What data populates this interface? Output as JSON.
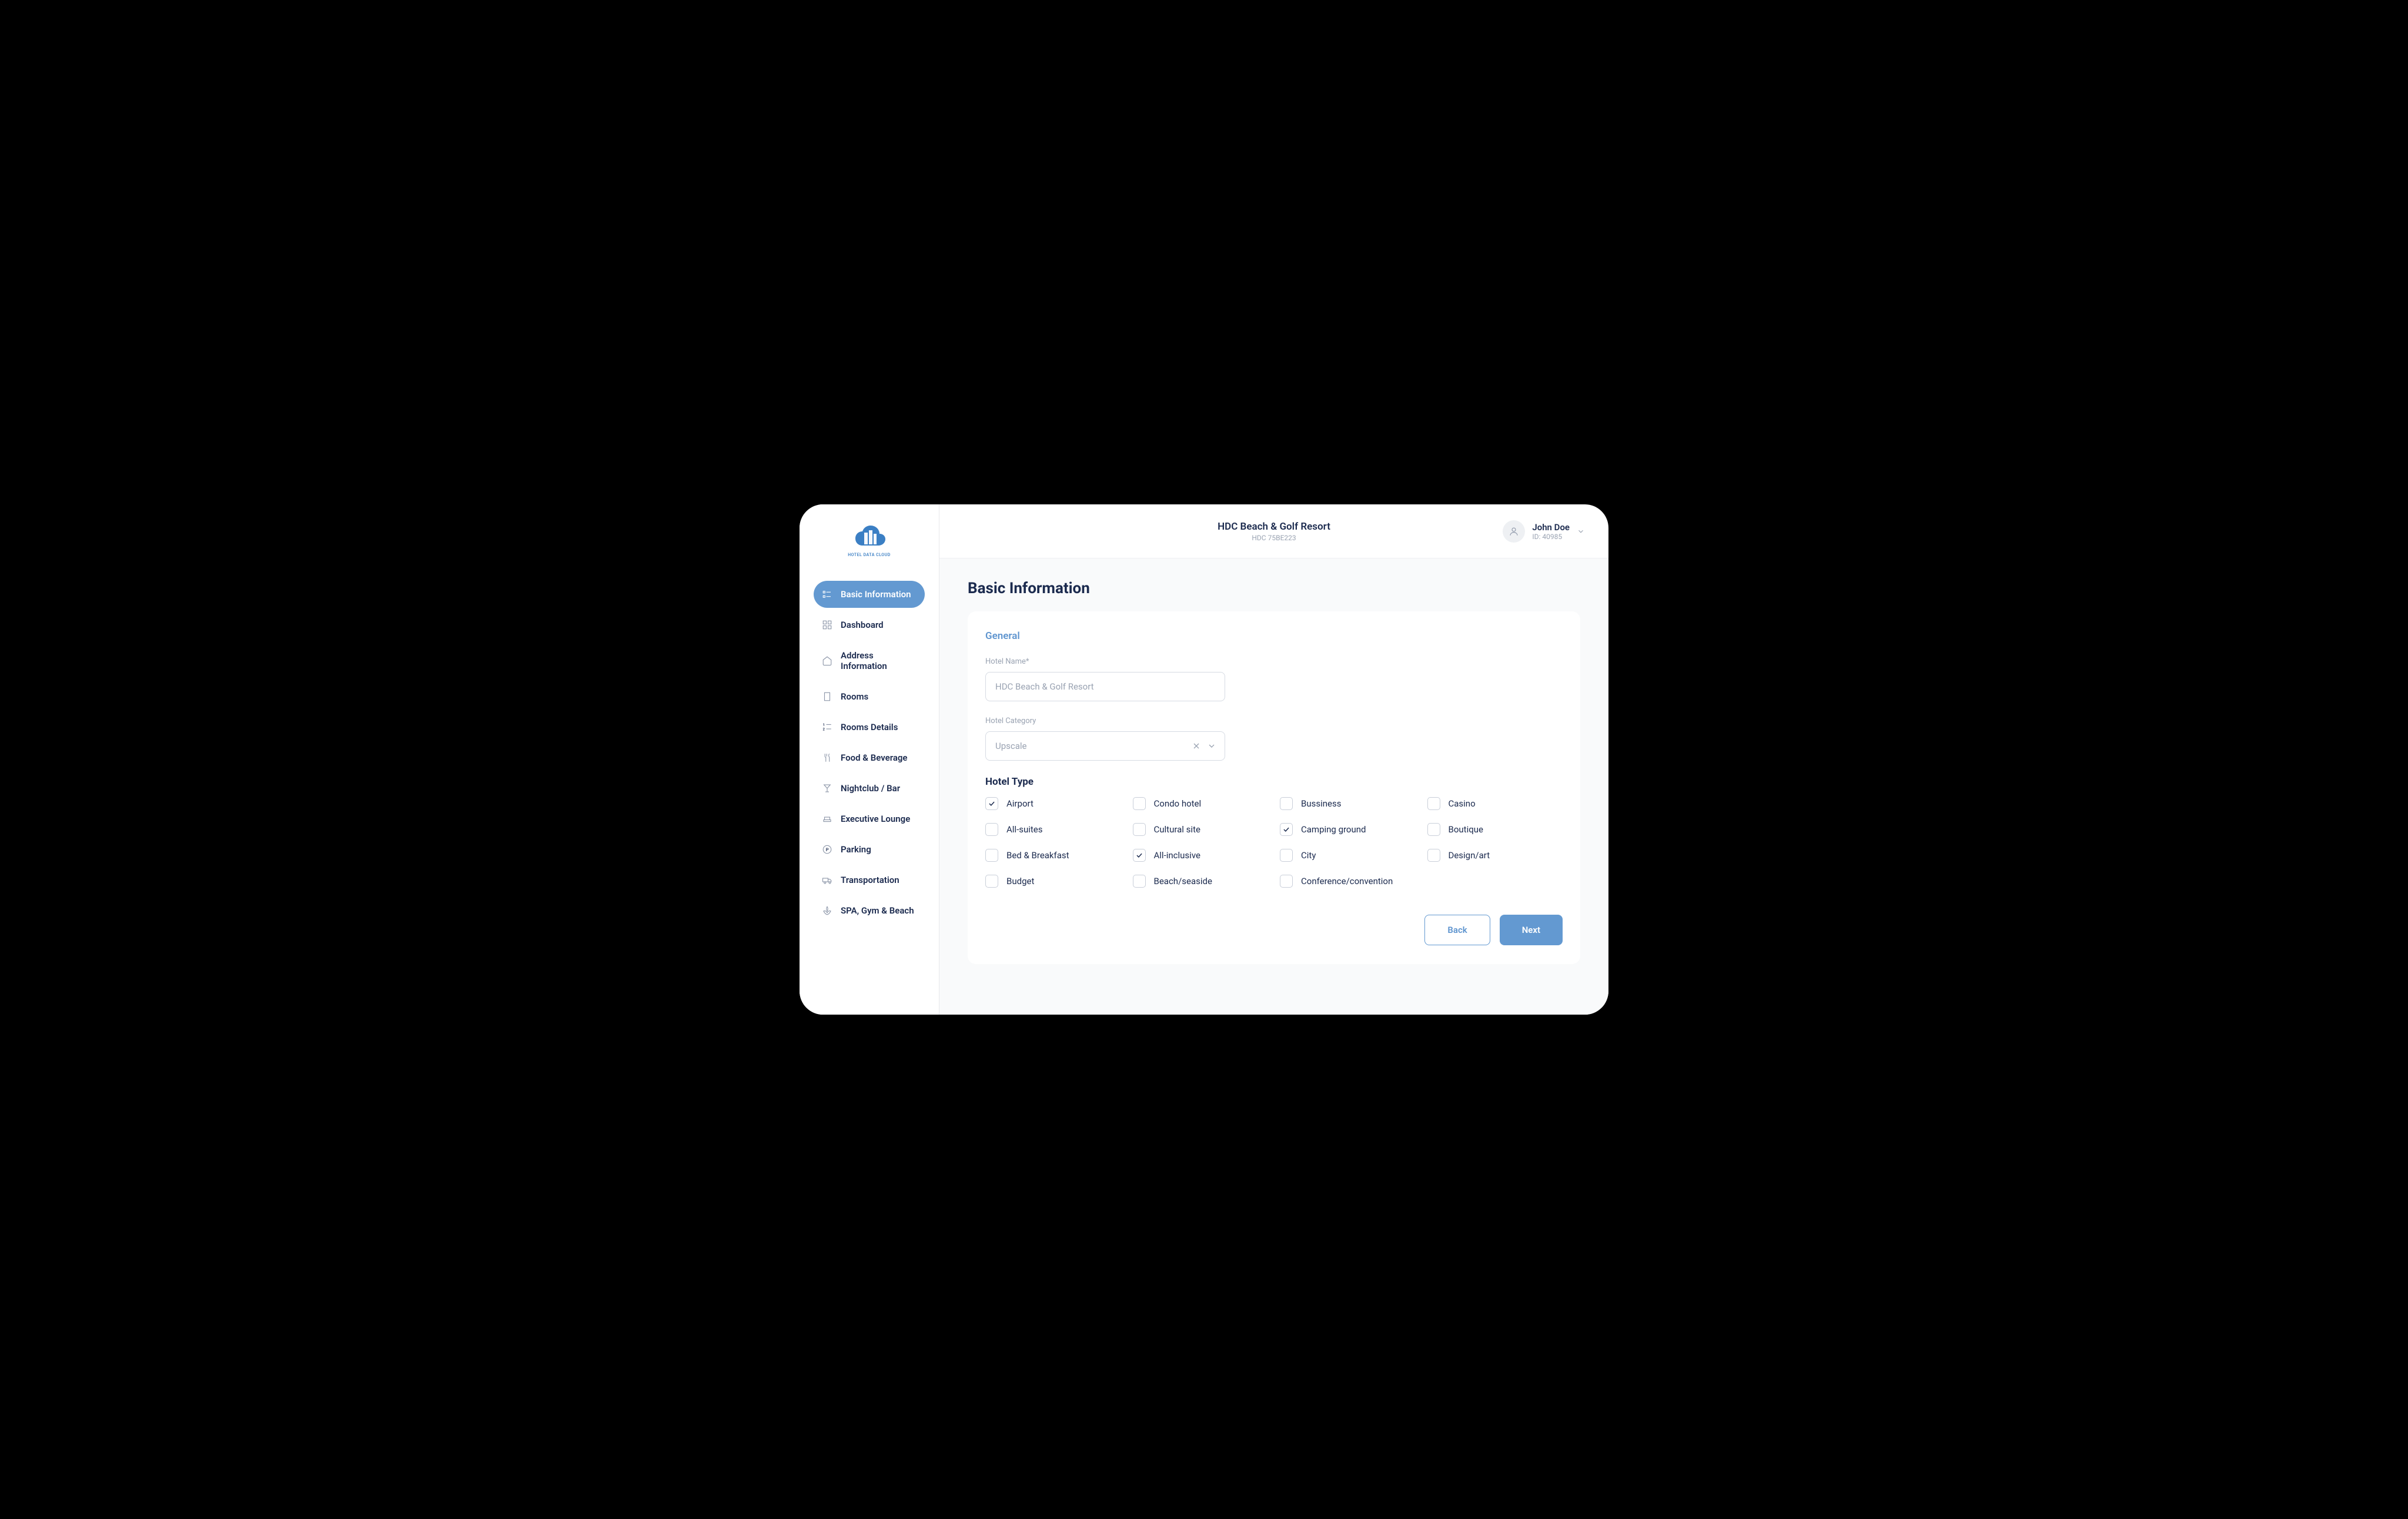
{
  "logo": {
    "text": "HOTEL DATA CLOUD"
  },
  "header": {
    "title": "HDC Beach & Golf Resort",
    "subtitle": "HDC 75BE223",
    "user_name": "John Doe",
    "user_id": "ID: 40985"
  },
  "nav": {
    "items": [
      {
        "label": "Basic Information",
        "icon": "list",
        "active": true
      },
      {
        "label": "Dashboard",
        "icon": "grid",
        "active": false
      },
      {
        "label": "Address Information",
        "icon": "home",
        "active": false
      },
      {
        "label": "Rooms",
        "icon": "building",
        "active": false
      },
      {
        "label": "Rooms Details",
        "icon": "numlist",
        "active": false
      },
      {
        "label": "Food & Beverage",
        "icon": "fork",
        "active": false
      },
      {
        "label": "Nightclub / Bar",
        "icon": "cocktail",
        "active": false
      },
      {
        "label": "Executive Lounge",
        "icon": "lounge",
        "active": false
      },
      {
        "label": "Parking",
        "icon": "parking",
        "active": false
      },
      {
        "label": "Transportation",
        "icon": "truck",
        "active": false
      },
      {
        "label": "SPA, Gym & Beach",
        "icon": "spa",
        "active": false
      }
    ]
  },
  "page": {
    "title": "Basic Information",
    "section_title": "General",
    "hotel_name_label": "Hotel Name*",
    "hotel_name_value": "HDC Beach & Golf Resort",
    "hotel_category_label": "Hotel Category",
    "hotel_category_value": "Upscale",
    "hotel_type_title": "Hotel Type",
    "types": [
      {
        "label": "Airport",
        "checked": true
      },
      {
        "label": "Condo hotel",
        "checked": false
      },
      {
        "label": "Bussiness",
        "checked": false
      },
      {
        "label": "Casino",
        "checked": false
      },
      {
        "label": "All-suites",
        "checked": false
      },
      {
        "label": "Cultural site",
        "checked": false
      },
      {
        "label": "Camping ground",
        "checked": true
      },
      {
        "label": "Boutique",
        "checked": false
      },
      {
        "label": "Bed & Breakfast",
        "checked": false
      },
      {
        "label": "All-inclusive",
        "checked": true
      },
      {
        "label": "City",
        "checked": false
      },
      {
        "label": "Design/art",
        "checked": false
      },
      {
        "label": "Budget",
        "checked": false
      },
      {
        "label": "Beach/seaside",
        "checked": false
      },
      {
        "label": "Conference/convention",
        "checked": false
      }
    ],
    "back_label": "Back",
    "next_label": "Next"
  },
  "colors": {
    "primary": "#6399d1",
    "accent_text": "#5f95cf",
    "heading": "#1b2a4e",
    "muted": "#9aa3b2",
    "border": "#d6dbe3",
    "bg": "#f9fafb"
  }
}
